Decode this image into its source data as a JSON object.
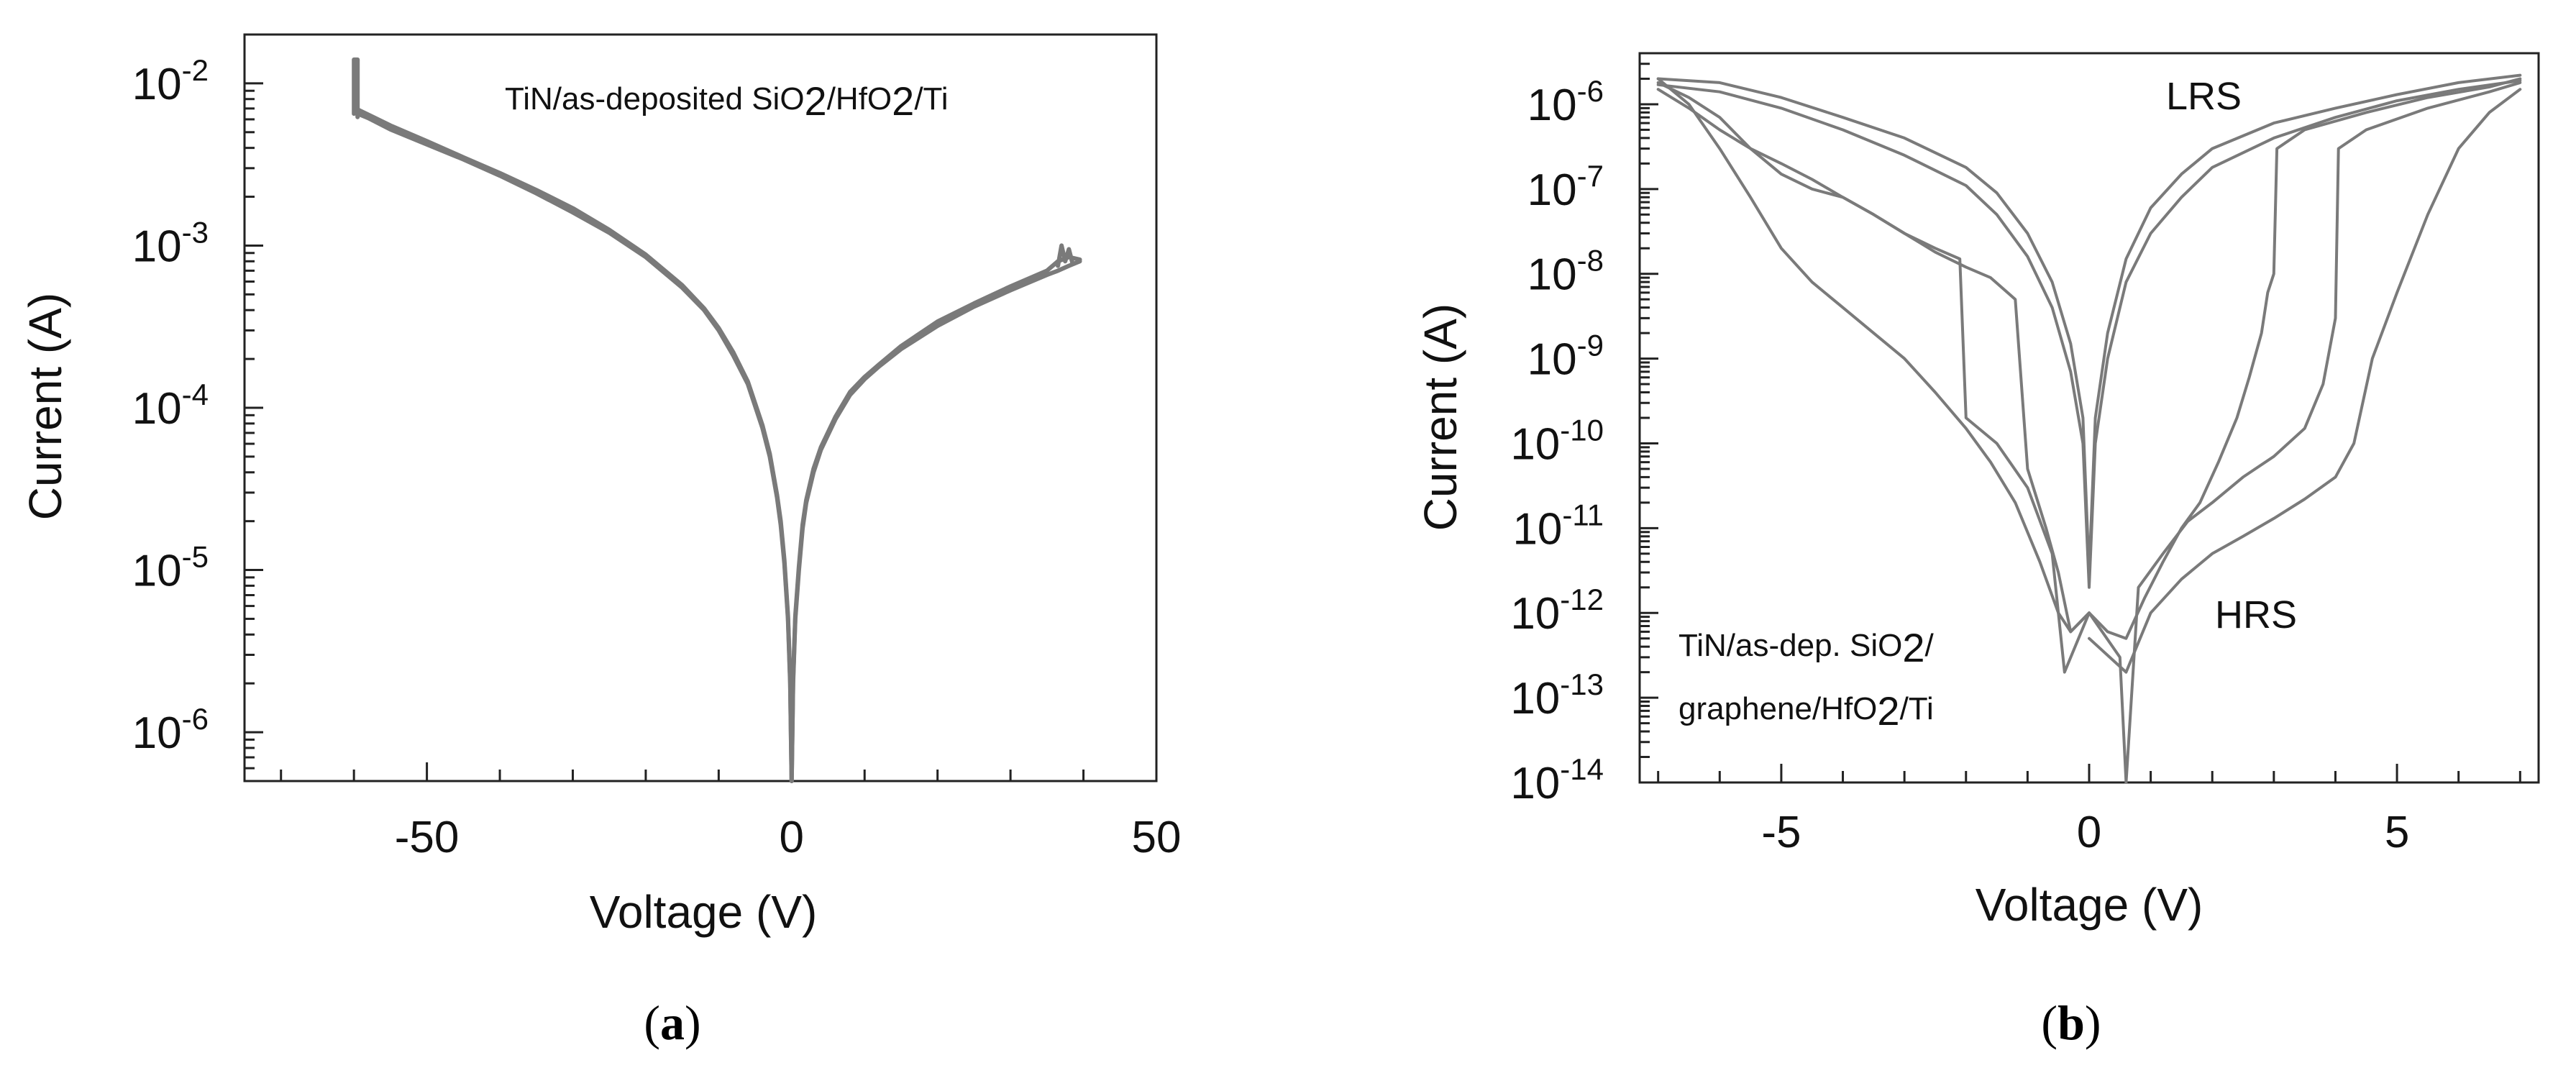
{
  "chart_data": [
    {
      "type": "line",
      "panel_label": "a",
      "title": "",
      "xlabel": "Voltage (V)",
      "ylabel": "Current (A)",
      "xscale": "linear",
      "yscale": "log",
      "xlim": [
        -75,
        50
      ],
      "ylim": [
        5e-07,
        0.02
      ],
      "x_ticks": [
        {
          "value": -50,
          "label": "-50"
        },
        {
          "value": 0,
          "label": "0"
        },
        {
          "value": 50,
          "label": "50"
        }
      ],
      "y_ticks": [
        {
          "value": 1e-06,
          "base": "10",
          "exp": "-6"
        },
        {
          "value": 1e-05,
          "base": "10",
          "exp": "-5"
        },
        {
          "value": 0.0001,
          "base": "10",
          "exp": "-4"
        },
        {
          "value": 0.001,
          "base": "10",
          "exp": "-3"
        },
        {
          "value": 0.01,
          "base": "10",
          "exp": "-2"
        }
      ],
      "annotation": {
        "parts": [
          "TiN/as-deposited SiO",
          "2",
          "/HfO",
          "2",
          "/Ti"
        ]
      },
      "series": [
        {
          "name": "sweep",
          "x": [
            -59.5,
            -58,
            -55,
            -50,
            -45,
            -40,
            -35,
            -30,
            -25,
            -20,
            -15,
            -12,
            -10,
            -8,
            -6,
            -4,
            -3,
            -2,
            -1.5,
            -1,
            -0.5,
            -0.2,
            0,
            0.2,
            0.5,
            1,
            1.5,
            2,
            3,
            4,
            6,
            8,
            10,
            12,
            15,
            20,
            25,
            30,
            35,
            36.5,
            38,
            39.5
          ],
          "y": [
            0.0065,
            0.0061,
            0.0052,
            0.0042,
            0.0034,
            0.0027,
            0.0021,
            0.0016,
            0.0012,
            0.00085,
            0.00055,
            0.0004,
            0.0003,
            0.00021,
            0.00014,
            7.5e-05,
            5e-05,
            2.8e-05,
            1.9e-05,
            1.1e-05,
            5e-06,
            2e-06,
            5e-07,
            2e-06,
            5e-06,
            1e-05,
            1.8e-05,
            2.6e-05,
            4e-05,
            5.5e-05,
            8.5e-05,
            0.00012,
            0.00015,
            0.00018,
            0.00023,
            0.00032,
            0.00042,
            0.00053,
            0.00066,
            0.0007,
            0.00075,
            0.0008
          ]
        },
        {
          "name": "sweep-2",
          "x": [
            -59.5,
            -58,
            -55,
            -50,
            -45,
            -40,
            -35,
            -30,
            -25,
            -20,
            -15,
            -12,
            -10,
            -8,
            -6,
            -4,
            -3,
            -2,
            -1.5,
            -1,
            -0.5,
            -0.2,
            0,
            0.2,
            0.5,
            1,
            1.5,
            2,
            3,
            4,
            6,
            8,
            10,
            12,
            15,
            20,
            25,
            30,
            35,
            36.5,
            38,
            39.5
          ],
          "y": [
            0.0069,
            0.0064,
            0.0055,
            0.0044,
            0.0035,
            0.0028,
            0.0022,
            0.0017,
            0.00125,
            0.00088,
            0.00057,
            0.00041,
            0.00031,
            0.00022,
            0.000145,
            7.8e-05,
            5.2e-05,
            2.9e-05,
            2e-05,
            1.15e-05,
            5.2e-06,
            2.1e-06,
            5e-07,
            2.1e-06,
            5.2e-06,
            1.05e-05,
            1.9e-05,
            2.7e-05,
            4.2e-05,
            5.7e-05,
            8.8e-05,
            0.000125,
            0.000155,
            0.000185,
            0.00024,
            0.00034,
            0.00044,
            0.00056,
            0.0007,
            0.0008,
            0.00085,
            0.00082
          ]
        },
        {
          "name": "initial-spike",
          "x": [
            -60,
            -60,
            -59.5,
            -59.5
          ],
          "y": [
            0.0065,
            0.014,
            0.014,
            0.0062
          ]
        },
        {
          "name": "end-spike",
          "x": [
            36.5,
            37,
            37.5,
            38,
            38.5
          ],
          "y": [
            0.00075,
            0.001,
            0.0008,
            0.00095,
            0.00078
          ]
        }
      ]
    },
    {
      "type": "line",
      "panel_label": "b",
      "title": "",
      "xlabel": "Voltage (V)",
      "ylabel": "Current (A)",
      "xscale": "linear",
      "yscale": "log",
      "xlim": [
        -7.3,
        7.3
      ],
      "ylim": [
        1e-14,
        4e-06
      ],
      "x_ticks": [
        {
          "value": -5,
          "label": "-5"
        },
        {
          "value": 0,
          "label": "0"
        },
        {
          "value": 5,
          "label": "5"
        }
      ],
      "y_ticks": [
        {
          "value": 1e-14,
          "base": "10",
          "exp": "-14"
        },
        {
          "value": 1e-13,
          "base": "10",
          "exp": "-13"
        },
        {
          "value": 1e-12,
          "base": "10",
          "exp": "-12"
        },
        {
          "value": 1e-11,
          "base": "10",
          "exp": "-11"
        },
        {
          "value": 1e-10,
          "base": "10",
          "exp": "-10"
        },
        {
          "value": 1e-09,
          "base": "10",
          "exp": "-9"
        },
        {
          "value": 1e-08,
          "base": "10",
          "exp": "-8"
        },
        {
          "value": 1e-07,
          "base": "10",
          "exp": "-7"
        },
        {
          "value": 1e-06,
          "base": "10",
          "exp": "-6"
        }
      ],
      "annotations": [
        {
          "name": "lrs",
          "text": "LRS"
        },
        {
          "name": "hrs",
          "text": "HRS"
        }
      ],
      "device_label": {
        "line1": [
          "TiN/as-dep. SiO",
          "2",
          "/"
        ],
        "line2": [
          "graphene/HfO",
          "2",
          "/Ti"
        ]
      },
      "series": [
        {
          "name": "lrs-loop-1",
          "x": [
            -7,
            -6,
            -5,
            -4,
            -3,
            -2,
            -1.5,
            -1,
            -0.6,
            -0.3,
            -0.1,
            0,
            0.1,
            0.3,
            0.6,
            1,
            1.5,
            2,
            3,
            4,
            5,
            6,
            7
          ],
          "y": [
            2e-06,
            1.8e-06,
            1.2e-06,
            7e-07,
            4e-07,
            1.8e-07,
            9e-08,
            3e-08,
            8e-09,
            1.5e-09,
            2e-10,
            3e-12,
            2e-10,
            2e-09,
            1.5e-08,
            6e-08,
            1.5e-07,
            3e-07,
            6e-07,
            9e-07,
            1.3e-06,
            1.8e-06,
            2.2e-06
          ]
        },
        {
          "name": "lrs-loop-2",
          "x": [
            -7,
            -6,
            -5,
            -4,
            -3,
            -2,
            -1.5,
            -1,
            -0.6,
            -0.3,
            -0.1,
            0,
            0.1,
            0.3,
            0.6,
            1,
            1.5,
            2,
            3,
            4,
            5,
            6,
            7
          ],
          "y": [
            1.7e-06,
            1.4e-06,
            9e-07,
            5e-07,
            2.5e-07,
            1.1e-07,
            5e-08,
            1.6e-08,
            4e-09,
            7e-10,
            1e-10,
            2e-12,
            1e-10,
            1e-09,
            8e-09,
            3e-08,
            8e-08,
            1.8e-07,
            4e-07,
            7e-07,
            1.1e-06,
            1.5e-06,
            1.9e-06
          ]
        },
        {
          "name": "set-sweep",
          "x": [
            0,
            0.3,
            0.6,
            0.9,
            1.2,
            1.5,
            1.8,
            2.1,
            2.4,
            2.6,
            2.8,
            2.9,
            3.0,
            3.05,
            3.5,
            4.5,
            5.5,
            6.5,
            7
          ],
          "y": [
            1e-12,
            6e-13,
            5e-13,
            1.5e-12,
            4e-12,
            1e-11,
            2e-11,
            6e-11,
            2e-10,
            6e-10,
            2e-09,
            6e-09,
            1e-08,
            3e-07,
            5e-07,
            8e-07,
            1.2e-06,
            1.6e-06,
            2e-06
          ]
        },
        {
          "name": "set-sweep-2",
          "x": [
            0,
            0.5,
            0.6,
            0.8,
            1.2,
            1.6,
            2,
            2.5,
            3,
            3.5,
            3.8,
            4,
            4.05,
            4.5,
            5.5,
            6.5,
            7
          ],
          "y": [
            1e-12,
            3e-13,
            1e-14,
            2e-12,
            5e-12,
            1.2e-11,
            2e-11,
            4e-11,
            7e-11,
            1.5e-10,
            5e-10,
            3e-09,
            3e-07,
            5e-07,
            9e-07,
            1.4e-06,
            1.8e-06
          ]
        },
        {
          "name": "set-sweep-3",
          "x": [
            0,
            0.6,
            1.0,
            1.5,
            2.0,
            2.5,
            3,
            3.5,
            4,
            4.3,
            4.6,
            5,
            5.5,
            6,
            6.5,
            7
          ],
          "y": [
            5e-13,
            2e-13,
            1e-12,
            2.5e-12,
            5e-12,
            8e-12,
            1.3e-11,
            2.2e-11,
            4e-11,
            1e-10,
            1e-09,
            6e-09,
            5e-08,
            3e-07,
            8e-07,
            1.5e-06
          ]
        },
        {
          "name": "reset-sweep",
          "x": [
            -7,
            -6.5,
            -6,
            -5.5,
            -5,
            -4.5,
            -4,
            -3.5,
            -3,
            -2.5,
            -2,
            -1.6,
            -1.2,
            -0.8,
            -0.5,
            -0.3,
            0
          ],
          "y": [
            2e-06,
            1e-06,
            3e-07,
            8e-08,
            2e-08,
            8e-09,
            4e-09,
            2e-09,
            1e-09,
            4e-10,
            1.5e-10,
            6e-11,
            2e-11,
            4e-12,
            1e-12,
            6e-13,
            1e-12
          ]
        },
        {
          "name": "reset-sweep-2",
          "x": [
            -7,
            -6.5,
            -6,
            -5.5,
            -5,
            -4.5,
            -4,
            -3.5,
            -3,
            -2.5,
            -2.1,
            -2.0,
            -1.5,
            -1.0,
            -0.6,
            -0.4,
            0
          ],
          "y": [
            1.8e-06,
            1.2e-06,
            7e-07,
            3e-07,
            1.5e-07,
            1e-07,
            8e-08,
            5e-08,
            3e-08,
            2e-08,
            1.5e-08,
            2e-10,
            1e-10,
            3e-11,
            5e-12,
            2e-13,
            1e-12
          ]
        },
        {
          "name": "reset-sweep-3",
          "x": [
            -7,
            -6.5,
            -6,
            -5.5,
            -5,
            -4.5,
            -4,
            -3.5,
            -3,
            -2.5,
            -2,
            -1.6,
            -1.2,
            -1.0,
            -0.7,
            -0.5,
            -0.3,
            0
          ],
          "y": [
            1.5e-06,
            9e-07,
            5e-07,
            3e-07,
            2e-07,
            1.3e-07,
            8e-08,
            5e-08,
            3e-08,
            1.8e-08,
            1.2e-08,
            9e-09,
            5e-09,
            5e-11,
            1e-11,
            3e-12,
            6e-13,
            1e-12
          ]
        }
      ]
    }
  ]
}
